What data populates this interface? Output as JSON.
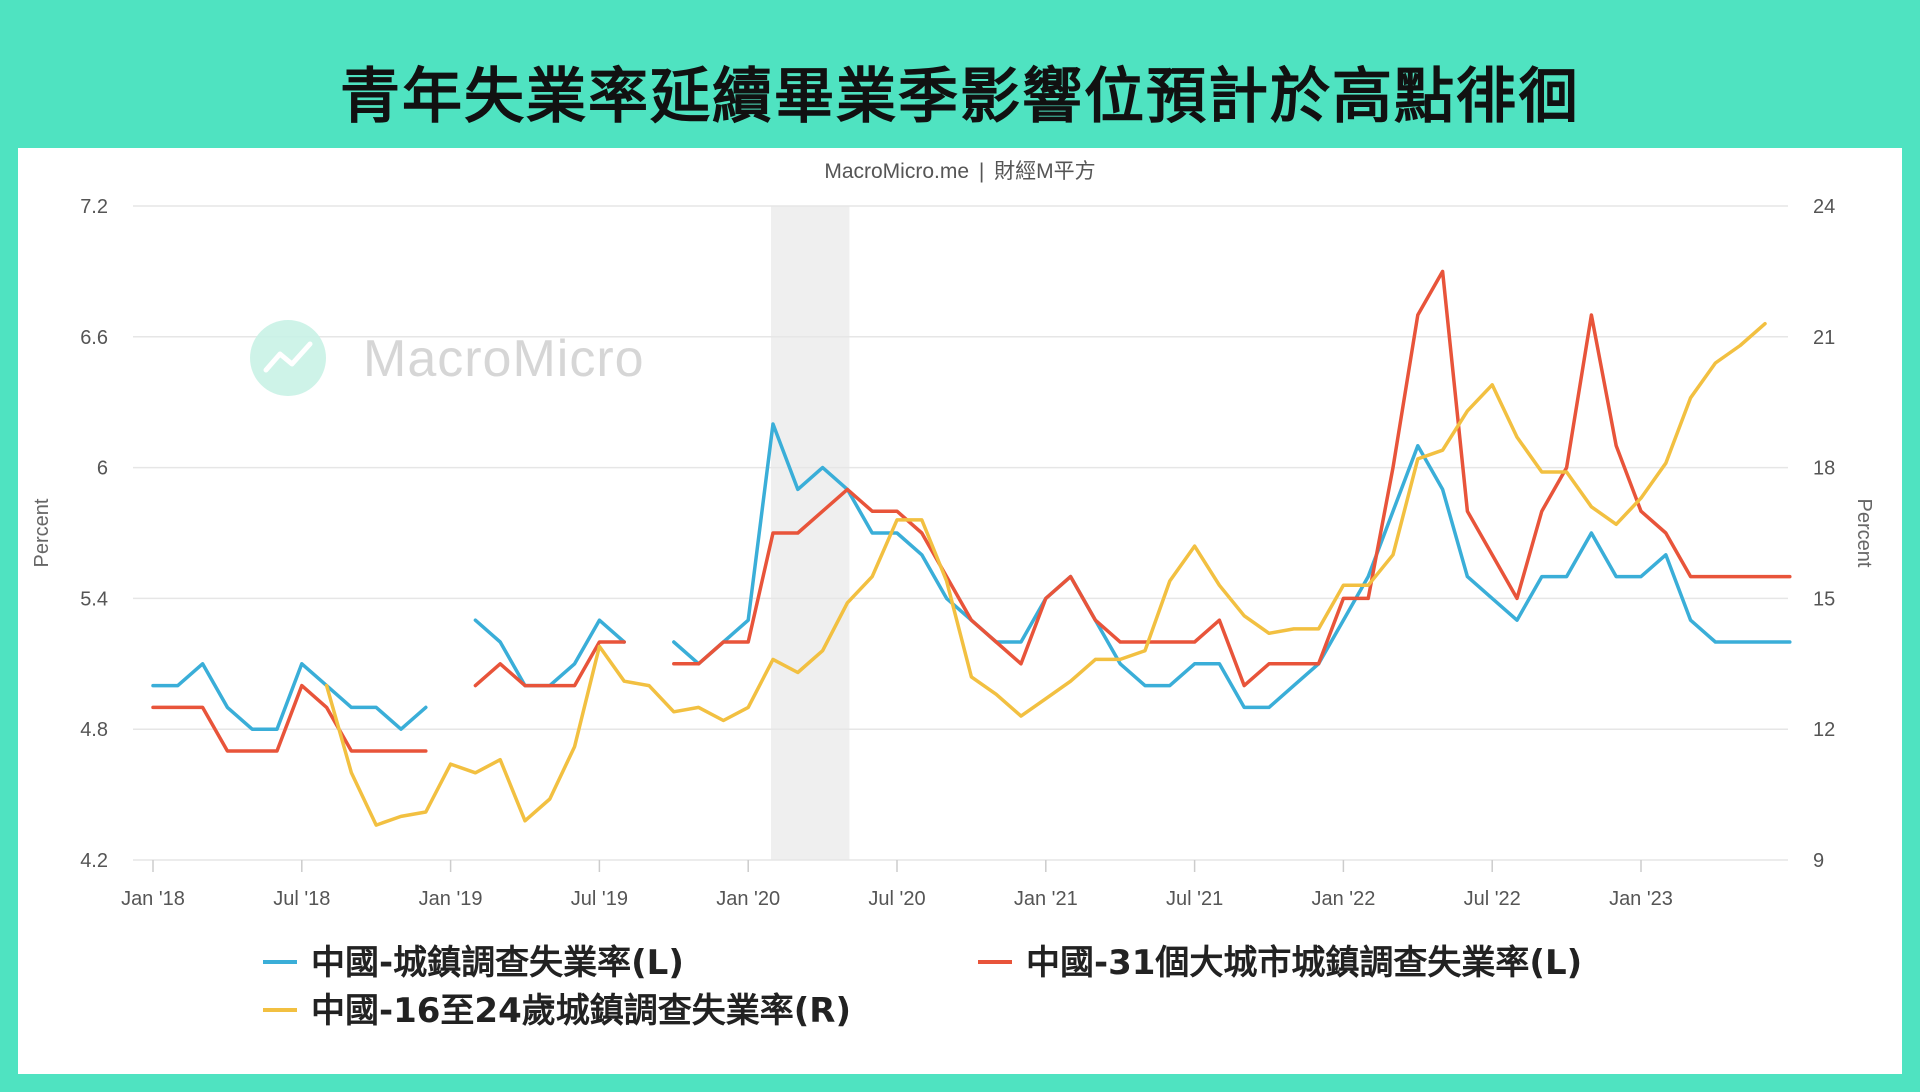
{
  "title": "青年失業率延續畢業季影響位預計於高點徘徊",
  "source_brand": "MacroMicro.me",
  "source_sep": "|",
  "source_cn": "財經M平方",
  "watermark": "MacroMicro",
  "colors": {
    "background": "#4fe3c1",
    "urban": "#3aaed8",
    "big31": "#e8543a",
    "youth": "#f2c041",
    "grid": "#e6e6e6",
    "recession_band": "#efefef"
  },
  "chart_data": {
    "type": "line",
    "x": [
      "2018-01",
      "2018-02",
      "2018-03",
      "2018-04",
      "2018-05",
      "2018-06",
      "2018-07",
      "2018-08",
      "2018-09",
      "2018-10",
      "2018-11",
      "2018-12",
      "2019-01",
      "2019-02",
      "2019-03",
      "2019-04",
      "2019-05",
      "2019-06",
      "2019-07",
      "2019-08",
      "2019-09",
      "2019-10",
      "2019-11",
      "2019-12",
      "2020-01",
      "2020-02",
      "2020-03",
      "2020-04",
      "2020-05",
      "2020-06",
      "2020-07",
      "2020-08",
      "2020-09",
      "2020-10",
      "2020-11",
      "2020-12",
      "2021-01",
      "2021-02",
      "2021-03",
      "2021-04",
      "2021-05",
      "2021-06",
      "2021-07",
      "2021-08",
      "2021-09",
      "2021-10",
      "2021-11",
      "2021-12",
      "2022-01",
      "2022-02",
      "2022-03",
      "2022-04",
      "2022-05",
      "2022-06",
      "2022-07",
      "2022-08",
      "2022-09",
      "2022-10",
      "2022-11",
      "2022-12",
      "2023-01",
      "2023-02",
      "2023-03",
      "2023-04",
      "2023-05",
      "2023-06",
      "2023-07"
    ],
    "x_tick_labels": [
      "Jan '18",
      "Jul '18",
      "Jan '19",
      "Jul '19",
      "Jan '20",
      "Jul '20",
      "Jan '21",
      "Jul '21",
      "Jan '22",
      "Jul '22",
      "Jan '23"
    ],
    "x_tick_indices": [
      0,
      6,
      12,
      18,
      24,
      30,
      36,
      42,
      48,
      54,
      60
    ],
    "y_left": {
      "label": "Percent",
      "ticks": [
        "4.2",
        "4.8",
        "5.4",
        "6",
        "6.6",
        "7.2"
      ],
      "lim": [
        4.2,
        7.2
      ]
    },
    "y_right": {
      "label": "Percent",
      "ticks": [
        "9",
        "12",
        "15",
        "18",
        "21",
        "24"
      ],
      "lim": [
        9,
        24
      ]
    },
    "shaded_x_range": [
      "2020-02",
      "2020-05"
    ],
    "grid": true,
    "legend_position": "bottom",
    "series": [
      {
        "name": "中國-城鎮調查失業率(L)",
        "axis": "left",
        "color": "#3aaed8",
        "values": [
          5.0,
          5.0,
          5.1,
          4.9,
          4.8,
          4.8,
          5.1,
          5.0,
          4.9,
          4.9,
          4.8,
          4.9,
          null,
          5.3,
          5.2,
          5.0,
          5.0,
          5.1,
          5.3,
          5.2,
          null,
          5.2,
          5.1,
          5.2,
          5.3,
          6.2,
          5.9,
          6.0,
          5.9,
          5.7,
          5.7,
          5.6,
          5.4,
          5.3,
          5.2,
          5.2,
          5.4,
          5.5,
          5.3,
          5.1,
          5.0,
          5.0,
          5.1,
          5.1,
          4.9,
          4.9,
          5.0,
          5.1,
          5.3,
          5.5,
          5.8,
          6.1,
          5.9,
          5.5,
          5.4,
          5.3,
          5.5,
          5.5,
          5.7,
          5.5,
          5.5,
          5.6,
          5.3,
          5.2,
          5.2,
          5.2,
          5.2
        ]
      },
      {
        "name": "中國-31個大城市城鎮調查失業率(L)",
        "axis": "left",
        "color": "#e8543a",
        "values": [
          4.9,
          4.9,
          4.9,
          4.7,
          4.7,
          4.7,
          5.0,
          4.9,
          4.7,
          4.7,
          4.7,
          4.7,
          null,
          5.0,
          5.1,
          5.0,
          5.0,
          5.0,
          5.2,
          5.2,
          null,
          5.1,
          5.1,
          5.2,
          5.2,
          5.7,
          5.7,
          5.8,
          5.9,
          5.8,
          5.8,
          5.7,
          5.5,
          5.3,
          5.2,
          5.1,
          5.4,
          5.5,
          5.3,
          5.2,
          5.2,
          5.2,
          5.2,
          5.3,
          5.0,
          5.1,
          5.1,
          5.1,
          5.4,
          5.4,
          6.0,
          6.7,
          6.9,
          5.8,
          5.6,
          5.4,
          5.8,
          6.0,
          6.7,
          6.1,
          5.8,
          5.7,
          5.5,
          5.5,
          5.5,
          5.5,
          5.5
        ]
      },
      {
        "name": "中國-16至24歲城鎮調查失業率(R)",
        "axis": "right",
        "color": "#f2c041",
        "values": [
          null,
          null,
          null,
          null,
          null,
          null,
          null,
          13.0,
          11.0,
          9.8,
          10.0,
          10.1,
          11.2,
          11.0,
          11.3,
          9.9,
          10.4,
          11.6,
          13.9,
          13.1,
          13.0,
          12.4,
          12.5,
          12.2,
          12.5,
          13.6,
          13.3,
          13.8,
          14.9,
          15.5,
          16.8,
          16.8,
          15.4,
          13.2,
          12.8,
          12.3,
          12.7,
          13.1,
          13.6,
          13.6,
          13.8,
          15.4,
          16.2,
          15.3,
          14.6,
          14.2,
          14.3,
          14.3,
          15.3,
          15.3,
          16.0,
          18.2,
          18.4,
          19.3,
          19.9,
          18.7,
          17.9,
          17.9,
          17.1,
          16.7,
          17.3,
          18.1,
          19.6,
          20.4,
          20.8,
          21.3,
          null
        ]
      }
    ]
  }
}
